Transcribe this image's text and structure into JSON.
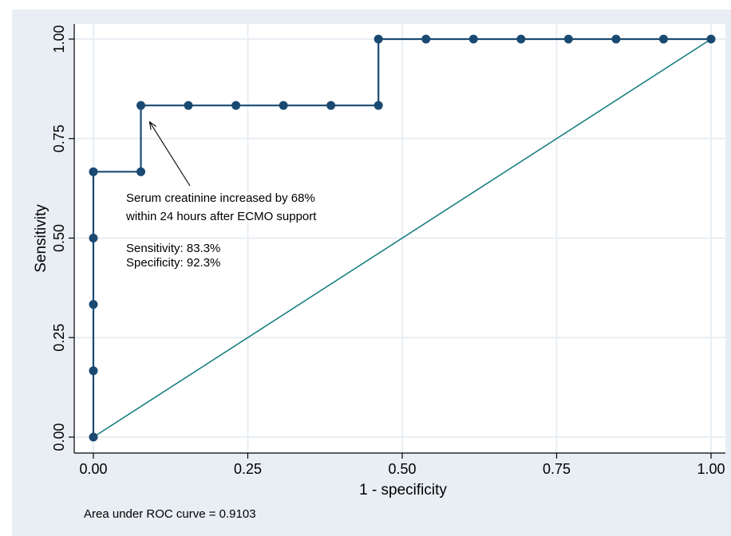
{
  "chart_data": {
    "type": "line",
    "title": "",
    "xlabel": "1 - specificity",
    "ylabel": "Sensitivity",
    "xlim": [
      0,
      1
    ],
    "ylim": [
      0,
      1
    ],
    "x_ticks": [
      "0.00",
      "0.25",
      "0.50",
      "0.75",
      "1.00"
    ],
    "y_ticks": [
      "0.00",
      "0.25",
      "0.50",
      "0.75",
      "1.00"
    ],
    "grid": true,
    "series": [
      {
        "kind": "roc-step-with-markers",
        "color": "#1a4a72",
        "x": [
          0,
          0,
          0,
          0,
          0,
          0.0769,
          0.0769,
          0.1538,
          0.2308,
          0.3077,
          0.3846,
          0.4615,
          0.4615,
          0.5385,
          0.6154,
          0.6923,
          0.7692,
          0.8462,
          0.9231,
          1.0
        ],
        "y": [
          0,
          0.1667,
          0.3333,
          0.5,
          0.6667,
          0.6667,
          0.8333,
          0.8333,
          0.8333,
          0.8333,
          0.8333,
          0.8333,
          1.0,
          1.0,
          1.0,
          1.0,
          1.0,
          1.0,
          1.0,
          1.0
        ]
      },
      {
        "kind": "reference-diagonal",
        "color": "#1a7f80",
        "x": [
          0,
          1
        ],
        "y": [
          0,
          1
        ]
      }
    ],
    "annotations": [
      {
        "lines": [
          "Serum creatinine increased by 68%",
          "within 24 hours after ECMO support"
        ],
        "arrow_to": [
          0.0769,
          0.8
        ]
      },
      {
        "lines": [
          "Sensitivity: 83.3%",
          "Specificity: 92.3%"
        ]
      }
    ],
    "footnote": "Area under ROC curve = 0.9103",
    "colors": {
      "outer_background": "#e8eef3",
      "plot_background": "#ffffff",
      "grid": "#e8eef3"
    }
  }
}
